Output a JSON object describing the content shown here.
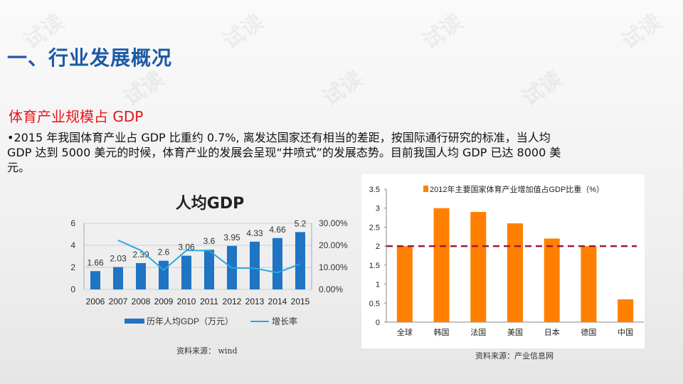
{
  "slide": {
    "title": "一、行业发展概况",
    "subtitle": "体育产业规模占 GDP",
    "paragraph": "•2015 年我国体育产业占 GDP 比重约 0.7%, 离发达国家还有相当的差距，按国际通行研究的标准，当人均 GDP 达到 5000 美元的时候，体育产业的发展会呈现“井喷式”的发展态势。目前我国人均 GDP 已达 8000 美元。",
    "watermark": "试读"
  },
  "chart_data": [
    {
      "type": "bar",
      "title": "人均GDP",
      "categories": [
        "2006",
        "2007",
        "2008",
        "2009",
        "2010",
        "2011",
        "2012",
        "2013",
        "2014",
        "2015"
      ],
      "series": [
        {
          "name": "历年人均GDP（万元）",
          "type": "bar",
          "axis": "left",
          "color": "#1f74c4",
          "values": [
            1.66,
            2.03,
            2.39,
            2.6,
            3.06,
            3.6,
            3.95,
            4.33,
            4.66,
            5.2
          ],
          "labels": [
            "1.66",
            "2.03",
            "2.39",
            "2.6",
            "3.06",
            "3.6",
            "3.95",
            "4.33",
            "4.66",
            "5.2"
          ]
        },
        {
          "name": "增长率",
          "type": "line",
          "axis": "right",
          "color": "#29a8e0",
          "values": [
            null,
            22.3,
            17.7,
            8.8,
            17.7,
            17.6,
            9.7,
            9.6,
            7.6,
            11.6
          ]
        }
      ],
      "yleft": {
        "ylim": [
          0,
          6
        ],
        "ticks": [
          "0",
          "2",
          "4",
          "6"
        ]
      },
      "yright": {
        "ylim": [
          0,
          30
        ],
        "ticks": [
          "0.00%",
          "10.00%",
          "20.00%",
          "30.00%"
        ]
      },
      "grid": true,
      "legend": "bottom",
      "source": "资料来源： wind"
    },
    {
      "type": "bar",
      "legend_label": "2012年主要国家体育产业增加值占GDP比重（%）",
      "categories": [
        "全球",
        "韩国",
        "法国",
        "美国",
        "日本",
        "德国",
        "中国"
      ],
      "values": [
        2,
        3,
        2.9,
        2.6,
        2.2,
        2,
        0.6
      ],
      "color": "#ff8000",
      "reference_line": {
        "value": 2,
        "color": "#a0173f",
        "style": "dashed"
      },
      "ylim": [
        0,
        3.5
      ],
      "ticks": [
        "0",
        "0.5",
        "1",
        "1.5",
        "2",
        "2.5",
        "3",
        "3.5"
      ],
      "grid": false,
      "legend": "top",
      "source": "资料来源：产业信息网"
    }
  ]
}
